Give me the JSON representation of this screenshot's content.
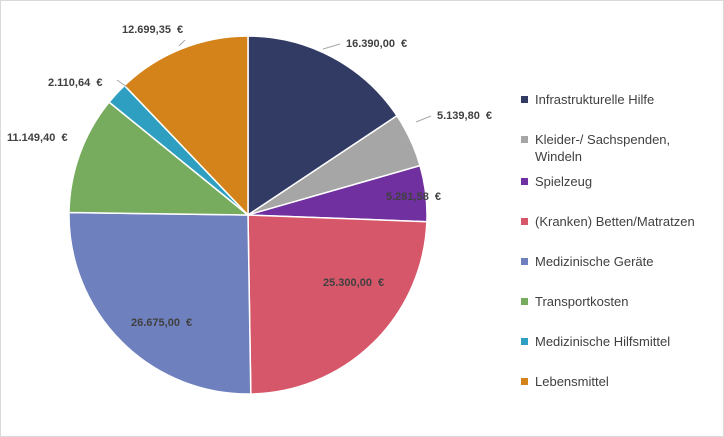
{
  "chart_data": {
    "type": "pie",
    "title": "",
    "slices": [
      {
        "name": "Infrastrukturelle Hilfe",
        "value": 16390.0,
        "label": "16.390,00  €",
        "color": "#323b64"
      },
      {
        "name": "Kleider-/ Sachspenden, Windeln",
        "value": 5139.8,
        "label": "5.139,80  €",
        "color": "#a6a6a6"
      },
      {
        "name": "Spielzeug",
        "value": 5281.58,
        "label": "5.281,58  €",
        "color": "#7030a0"
      },
      {
        "name": "(Kranken) Betten/Matratzen",
        "value": 25300.0,
        "label": "25.300,00  €",
        "color": "#d6576a"
      },
      {
        "name": "Medizinische Geräte",
        "value": 26675.0,
        "label": "26.675,00  €",
        "color": "#6e80be"
      },
      {
        "name": "Transportkosten",
        "value": 11149.4,
        "label": "11.149,40  €",
        "color": "#77ac5e"
      },
      {
        "name": "Medizinische Hilfsmittel",
        "value": 2110.64,
        "label": "2.110,64  €",
        "color": "#2e9fc1"
      },
      {
        "name": "Lebensmittel",
        "value": 12699.35,
        "label": "12.699,35  €",
        "color": "#d4821a"
      }
    ],
    "legend": {
      "position": "right",
      "items": [
        {
          "text": "Infrastrukturelle Hilfe",
          "color": "#323b64"
        },
        {
          "text": "Kleider-/ Sachspenden,",
          "text2": "Windeln",
          "color": "#a6a6a6"
        },
        {
          "text": "Spielzeug",
          "color": "#7030a0"
        },
        {
          "text": "(Kranken) Betten/Matratzen",
          "color": "#d6576a"
        },
        {
          "text": "Medizinische Geräte",
          "color": "#6e80be"
        },
        {
          "text": "Transportkosten",
          "color": "#77ac5e"
        },
        {
          "text": "Medizinische Hilfsmittel",
          "color": "#2e9fc1"
        },
        {
          "text": "Lebensmittel",
          "color": "#d4821a"
        }
      ]
    }
  }
}
